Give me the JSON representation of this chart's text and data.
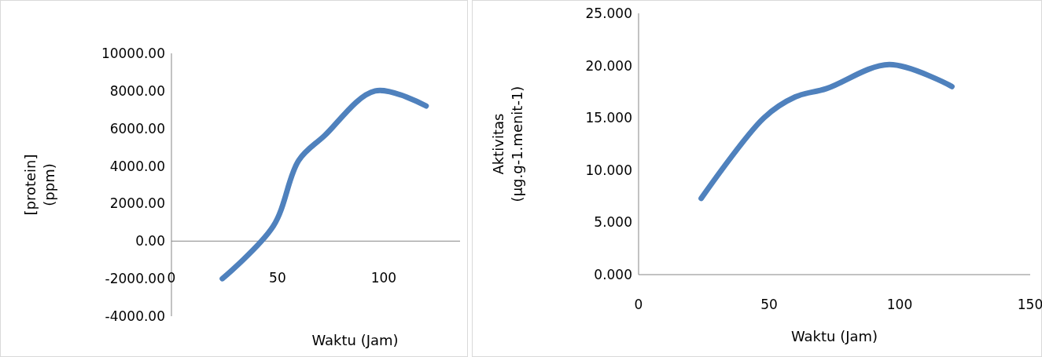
{
  "chart_data": [
    {
      "type": "line",
      "xlabel": "Waktu (Jam)",
      "ylabel": "[protein] (ppm)",
      "x": [
        24,
        48,
        60,
        72,
        96,
        120
      ],
      "xlim": [
        0,
        136
      ],
      "xticks": [
        0,
        50,
        100
      ],
      "ylim": [
        -4000,
        10000
      ],
      "yticks": [
        {
          "value": -4000,
          "label": "-4000.00"
        },
        {
          "value": -2000,
          "label": "-2000.00"
        },
        {
          "value": 0,
          "label": "0.00"
        },
        {
          "value": 2000,
          "label": "2000.00"
        },
        {
          "value": 4000,
          "label": "4000.00"
        },
        {
          "value": 6000,
          "label": "6000.00"
        },
        {
          "value": 8000,
          "label": "8000.00"
        },
        {
          "value": 10000,
          "label": "10000.00"
        }
      ],
      "series": [
        {
          "color": "#4f81bd",
          "values": [
            -2000,
            800,
            4300,
            5600,
            8000,
            7200
          ]
        }
      ],
      "grid": false,
      "marker": "none"
    },
    {
      "type": "line",
      "xlabel": "Waktu (Jam)",
      "ylabel": "Aktivitas (µg.g-1.menit-1)",
      "x": [
        24,
        48,
        60,
        72,
        96,
        120
      ],
      "xlim": [
        0,
        150
      ],
      "xticks": [
        0,
        50,
        100,
        150
      ],
      "ylim": [
        0,
        25
      ],
      "yticks": [
        {
          "value": 0,
          "label": "0.000"
        },
        {
          "value": 5,
          "label": "5.000"
        },
        {
          "value": 10,
          "label": "10.000"
        },
        {
          "value": 15,
          "label": "15.000"
        },
        {
          "value": 20,
          "label": "20.000"
        },
        {
          "value": 25,
          "label": "25.000"
        }
      ],
      "series": [
        {
          "color": "#4f81bd",
          "values": [
            7.3,
            15.0,
            17.0,
            17.8,
            20.1,
            18.0
          ]
        }
      ],
      "grid": false,
      "marker": "none"
    }
  ]
}
